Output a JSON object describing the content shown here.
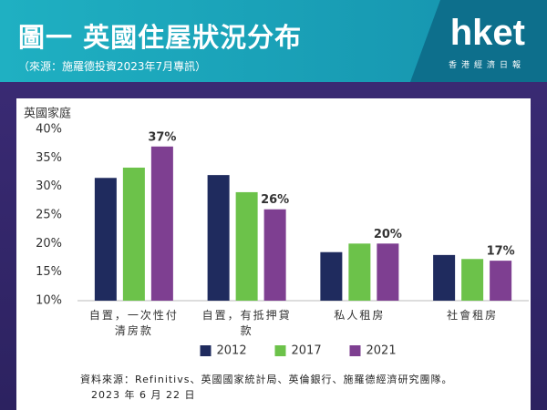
{
  "header": {
    "title": "圖一 英國住屋狀況分布",
    "subtitle": "（來源：施羅德投資2023年7月專訊）",
    "logo": "hket",
    "logo_subtitle": "香港經濟日報"
  },
  "chart_data": {
    "type": "bar",
    "y_label": "英國家庭",
    "categories": [
      "自置，一次性付清房款",
      "自置，有抵押貸款",
      "私人租房",
      "社會租房"
    ],
    "series": [
      {
        "name": "2012",
        "color": "#1f2b5e",
        "values": [
          31.5,
          32,
          18.5,
          18
        ]
      },
      {
        "name": "2017",
        "color": "#6cc24a",
        "values": [
          33.3,
          29,
          20,
          17.3
        ]
      },
      {
        "name": "2021",
        "color": "#7e3f91",
        "values": [
          37,
          26,
          20,
          17
        ],
        "value_labels": [
          "37%",
          "26%",
          "20%",
          "17%"
        ]
      }
    ],
    "ylim": [
      10,
      40
    ],
    "yticks": [
      {
        "value": 10,
        "label": "10%"
      },
      {
        "value": 15,
        "label": "15%"
      },
      {
        "value": 20,
        "label": "20%"
      },
      {
        "value": 25,
        "label": "25%"
      },
      {
        "value": 30,
        "label": "30%"
      },
      {
        "value": 35,
        "label": "35%"
      },
      {
        "value": 40,
        "label": "40%"
      }
    ],
    "grid": false,
    "note": [
      "資料來源：Refinitivs、英國國家統計局、英倫銀行、施羅德經濟研究團隊。",
      "2023 年 6 月 22 日"
    ]
  }
}
